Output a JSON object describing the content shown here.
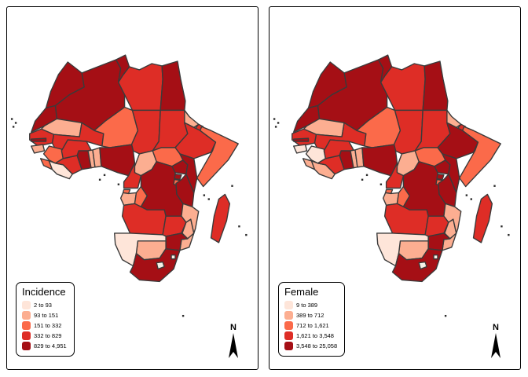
{
  "figure": {
    "background": "#FFFFFF",
    "panel_border_color": "#000000"
  },
  "palette": {
    "class1": "#FEE5D9",
    "class2": "#FCAE91",
    "class3": "#FB6A4A",
    "class4": "#DE2D26",
    "class5": "#A50F15",
    "border": "#3A3A3A",
    "nodata": "#F5F1E8",
    "island_dot": "#2B2B2B"
  },
  "panels": [
    {
      "legend": {
        "title": "Incidence",
        "items": [
          {
            "label": "2 to 93",
            "color": "#FEE5D9"
          },
          {
            "label": "93 to 151",
            "color": "#FCAE91"
          },
          {
            "label": "151 to 332",
            "color": "#FB6A4A"
          },
          {
            "label": "332 to 829",
            "color": "#DE2D26"
          },
          {
            "label": "829 to 4,951",
            "color": "#A50F15"
          }
        ]
      },
      "north_label": "N",
      "countries": {
        "algeria": 5,
        "libya": 4,
        "egypt": 5,
        "morocco": 5,
        "western_sahara": 5,
        "tunisia": 5,
        "mauritania": 2,
        "mali": 4,
        "niger": 3,
        "chad": 4,
        "sudan": 4,
        "eritrea": 2,
        "djibouti": 4,
        "ethiopia": 4,
        "somalia": 3,
        "senegal": 4,
        "gambia": 5,
        "guinea_bissau": 2,
        "guinea": 3,
        "sierra_leone": 3,
        "liberia": 1,
        "cote_divoire": 4,
        "ghana": 5,
        "togo": 2,
        "benin": 2,
        "burkina_faso": 4,
        "nigeria": 5,
        "cameroon": 4,
        "central_african_republic": 2,
        "south_sudan": 3,
        "equatorial_guinea": 3,
        "gabon": 2,
        "congo": 3,
        "drc": 5,
        "uganda": 5,
        "kenya": 5,
        "rwanda": 5,
        "burundi": 3,
        "tanzania": 5,
        "angola": 4,
        "zambia": 4,
        "malawi": 2,
        "mozambique": 2,
        "zimbabwe": 5,
        "botswana": 2,
        "namibia": 1,
        "south_africa": 5,
        "lesotho": 0,
        "eswatini": 0,
        "madagascar": 4
      }
    },
    {
      "legend": {
        "title": "Female",
        "items": [
          {
            "label": "9 to 389",
            "color": "#FEE5D9"
          },
          {
            "label": "389 to 712",
            "color": "#FCAE91"
          },
          {
            "label": "712 to 1,621",
            "color": "#FB6A4A"
          },
          {
            "label": "1,621 to 3,548",
            "color": "#DE2D26"
          },
          {
            "label": "3,548 to 25,058",
            "color": "#A50F15"
          }
        ]
      },
      "north_label": "N",
      "countries": {
        "algeria": 5,
        "libya": 4,
        "egypt": 5,
        "morocco": 5,
        "western_sahara": 5,
        "tunisia": 5,
        "mauritania": 2,
        "mali": 4,
        "niger": 3,
        "chad": 4,
        "sudan": 4,
        "eritrea": 2,
        "djibouti": 4,
        "ethiopia": 5,
        "somalia": 3,
        "senegal": 4,
        "gambia": 5,
        "guinea_bissau": 1,
        "guinea": 1,
        "sierra_leone": 2,
        "liberia": 2,
        "cote_divoire": 4,
        "ghana": 5,
        "togo": 2,
        "benin": 2,
        "burkina_faso": 4,
        "nigeria": 5,
        "cameroon": 4,
        "central_african_republic": 2,
        "south_sudan": 3,
        "equatorial_guinea": 3,
        "gabon": 2,
        "congo": 3,
        "drc": 5,
        "uganda": 5,
        "kenya": 5,
        "rwanda": 5,
        "burundi": 3,
        "tanzania": 5,
        "angola": 4,
        "zambia": 4,
        "malawi": 2,
        "mozambique": 2,
        "zimbabwe": 5,
        "botswana": 2,
        "namibia": 1,
        "south_africa": 5,
        "lesotho": 0,
        "eswatini": 0,
        "madagascar": 4
      }
    }
  ]
}
